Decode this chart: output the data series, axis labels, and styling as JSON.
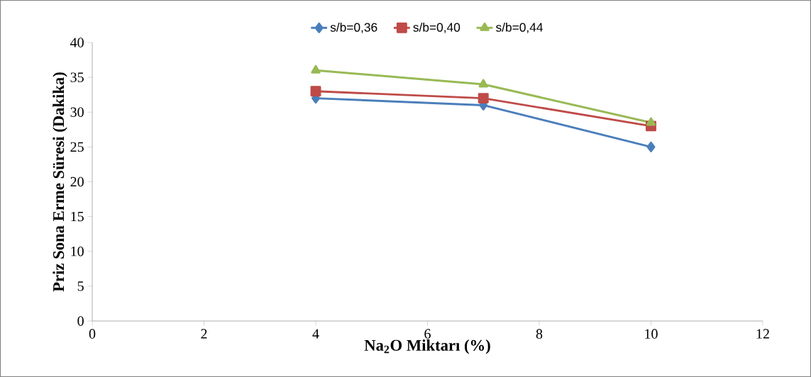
{
  "chart_data": {
    "type": "line",
    "xlabel": "Na$_{2}$O Miktarı (%)",
    "ylabel": "Priz Sona Erme Süresi (Dakika)",
    "xlim": [
      0,
      12
    ],
    "xticks": [
      0,
      2,
      4,
      6,
      8,
      10,
      12
    ],
    "ylim": [
      0,
      40
    ],
    "yticks": [
      0,
      5,
      10,
      15,
      20,
      25,
      30,
      35,
      40
    ],
    "grid": false,
    "legend": "top",
    "line_style": "solid",
    "series": [
      {
        "name": "s/b=0,36",
        "color": "#4a7ebb",
        "marker": "diamond",
        "x": [
          4,
          7,
          10
        ],
        "values": [
          32,
          31,
          25
        ]
      },
      {
        "name": "s/b=0,40",
        "color": "#be4b48",
        "marker": "square",
        "x": [
          4,
          7,
          10
        ],
        "values": [
          33,
          32,
          28
        ]
      },
      {
        "name": "s/b=0,44",
        "color": "#98b954",
        "marker": "triangle",
        "x": [
          4,
          7,
          10
        ],
        "values": [
          36,
          34,
          28.5
        ]
      }
    ]
  }
}
